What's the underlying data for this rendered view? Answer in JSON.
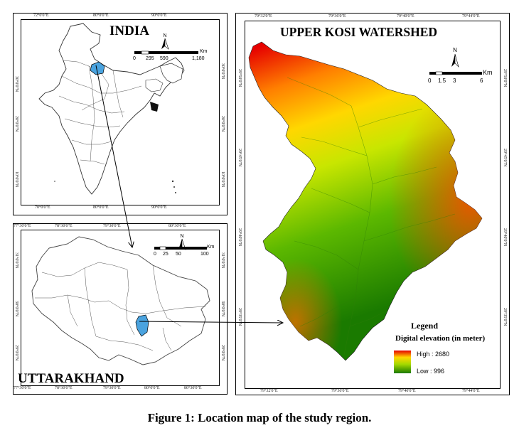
{
  "india": {
    "title": "INDIA",
    "top_ticks": [
      "72°0'0\"E",
      "80°0'0\"E",
      "90°0'0\"E"
    ],
    "bottom_ticks": [
      "70°0'0\"E",
      "80°0'0\"E",
      "90°0'0\"E"
    ],
    "left_ticks": [
      "30°0'0\"N",
      "20°0'0\"N",
      "10°0'0\"N"
    ],
    "right_ticks": [
      "30°0'0\"N",
      "20°0'0\"N",
      "10°0'0\"N"
    ],
    "scale": {
      "unit": "Km",
      "labels": [
        "0",
        "295",
        "590",
        "1,180"
      ]
    },
    "north": "N"
  },
  "uttarakhand": {
    "title": "UTTARAKHAND",
    "top_ticks": [
      "77°30'0\"E",
      "78°30'0\"E",
      "79°30'0\"E",
      "80°30'0\"E"
    ],
    "bottom_ticks": [
      "77°30'0\"E",
      "78°30'0\"E",
      "79°30'0\"E",
      "80°0'0\"E",
      "80°30'0\"E"
    ],
    "left_ticks": [
      "31°0'0\"N",
      "30°0'0\"N",
      "29°0'0\"N"
    ],
    "right_ticks": [
      "31°0'0\"N",
      "30°0'0\"N",
      "29°0'0\"N"
    ],
    "scale": {
      "unit": "Km",
      "labels": [
        "0",
        "25",
        "50",
        "100"
      ]
    },
    "north": "N"
  },
  "watershed": {
    "title": "UPPER KOSI WATERSHED",
    "top_ticks": [
      "79°32'0\"E",
      "79°36'0\"E",
      "79°40'0\"E",
      "79°44'0\"E"
    ],
    "bottom_ticks": [
      "79°32'0\"E",
      "79°36'0\"E",
      "79°40'0\"E",
      "79°44'0\"E"
    ],
    "left_ticks": [
      "29°50'0\"N",
      "29°45'0\"N",
      "29°40'0\"N",
      "29°35'0\"N"
    ],
    "right_ticks": [
      "29°50'0\"N",
      "29°45'0\"N",
      "29°40'0\"N",
      "29°35'0\"N"
    ],
    "scale": {
      "unit": "Km",
      "labels": [
        "0",
        "1.5",
        "3",
        "6"
      ]
    },
    "north": "N",
    "legend": {
      "title": "Legend",
      "subtitle": "Digital elevation (in meter)",
      "high_label": "High : 2680",
      "low_label": "Low : 996",
      "high_value": 2680,
      "low_value": 996,
      "colors": [
        "#e60000",
        "#ff8c00",
        "#ffd700",
        "#c8e600",
        "#5cb800",
        "#1a7a00"
      ]
    }
  },
  "caption": "Figure 1: Location map of the study region.",
  "colors": {
    "highlight": "#4aa3df",
    "border": "#000000"
  }
}
